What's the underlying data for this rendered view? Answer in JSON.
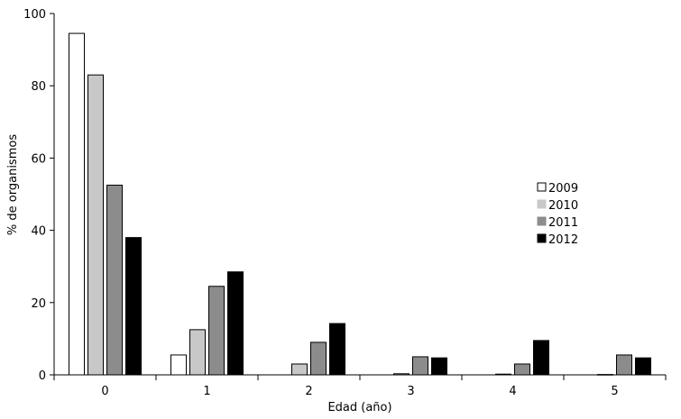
{
  "chart_data": {
    "type": "bar",
    "xlabel": "Edad (año)",
    "ylabel": "% de organismos",
    "ylim": [
      0,
      100
    ],
    "yticks": [
      0,
      20,
      40,
      60,
      80,
      100
    ],
    "categories": [
      "0",
      "1",
      "2",
      "3",
      "4",
      "5"
    ],
    "grid": false,
    "legend_position": "right",
    "series": [
      {
        "name": "2009",
        "color": "#ffffff",
        "values": [
          94.5,
          5.5,
          0,
          0,
          0,
          0
        ]
      },
      {
        "name": "2010",
        "color": "#c8c8c8",
        "values": [
          83,
          12.5,
          3,
          0.3,
          0.2,
          0.1
        ]
      },
      {
        "name": "2011",
        "color": "#8c8c8c",
        "values": [
          52.5,
          24.5,
          9,
          5,
          3,
          5.5
        ]
      },
      {
        "name": "2012",
        "color": "#000000",
        "values": [
          38,
          28.5,
          14.2,
          4.7,
          9.5,
          4.7
        ]
      }
    ]
  }
}
